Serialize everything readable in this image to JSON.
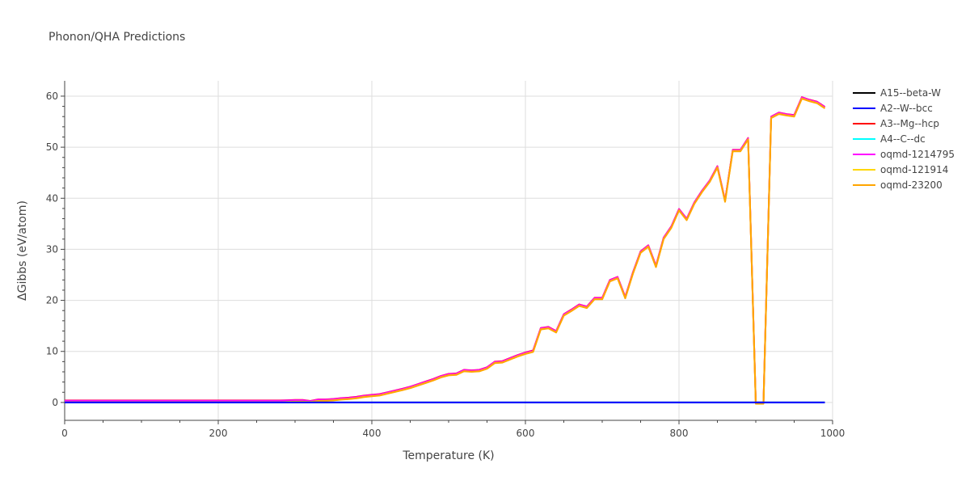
{
  "chart_data": {
    "type": "line",
    "title": "Phonon/QHA Predictions",
    "xlabel": "Temperature (K)",
    "ylabel": "ΔGibbs (eV/atom)",
    "xlim": [
      0,
      1000
    ],
    "ylim": [
      -3.5,
      63
    ],
    "xticks": [
      0,
      200,
      400,
      600,
      800,
      1000
    ],
    "yticks": [
      0,
      10,
      20,
      30,
      40,
      50,
      60
    ],
    "x": [
      0,
      10,
      20,
      30,
      40,
      50,
      60,
      70,
      80,
      90,
      100,
      110,
      120,
      130,
      140,
      150,
      160,
      170,
      180,
      190,
      200,
      210,
      220,
      230,
      240,
      250,
      260,
      270,
      280,
      290,
      300,
      310,
      320,
      330,
      340,
      350,
      360,
      370,
      380,
      390,
      400,
      410,
      420,
      430,
      440,
      450,
      460,
      470,
      480,
      490,
      500,
      510,
      520,
      530,
      540,
      550,
      560,
      570,
      580,
      590,
      600,
      610,
      620,
      630,
      640,
      650,
      660,
      670,
      680,
      690,
      700,
      710,
      720,
      730,
      740,
      750,
      760,
      770,
      780,
      790,
      800,
      810,
      820,
      830,
      840,
      850,
      860,
      870,
      880,
      890,
      900,
      910,
      920,
      930,
      940,
      950,
      960,
      970,
      980,
      990
    ],
    "series": [
      {
        "name": "A15--beta-W",
        "color": "#000000",
        "values": [
          0,
          0,
          0,
          0,
          0,
          0,
          0,
          0,
          0,
          0,
          0,
          0,
          0,
          0,
          0,
          0,
          0,
          0,
          0,
          0,
          0,
          0,
          0,
          0,
          0,
          0,
          0,
          0,
          0,
          0,
          0,
          0,
          0,
          0,
          0,
          0,
          0,
          0,
          0,
          0,
          0,
          0,
          0,
          0,
          0,
          0,
          0,
          0,
          0,
          0,
          0,
          0,
          0,
          0,
          0,
          0,
          0,
          0,
          0,
          0,
          0,
          0,
          0,
          0,
          0,
          0,
          0,
          0,
          0,
          0,
          0,
          0,
          0,
          0,
          0,
          0,
          0,
          0,
          0,
          0,
          0,
          0,
          0,
          0,
          0,
          0,
          0,
          0,
          0,
          0,
          0,
          0,
          0,
          0,
          0,
          0,
          0,
          0,
          0,
          0
        ]
      },
      {
        "name": "A2--W--bcc",
        "color": "#0000ff",
        "values": [
          0,
          0,
          0,
          0,
          0,
          0,
          0,
          0,
          0,
          0,
          0,
          0,
          0,
          0,
          0,
          0,
          0,
          0,
          0,
          0,
          0,
          0,
          0,
          0,
          0,
          0,
          0,
          0,
          0,
          0,
          0,
          0,
          0,
          0,
          0,
          0,
          0,
          0,
          0,
          0,
          0,
          0,
          0,
          0,
          0,
          0,
          0,
          0,
          0,
          0,
          0,
          0,
          0,
          0,
          0,
          0,
          0,
          0,
          0,
          0,
          0,
          0,
          0,
          0,
          0,
          0,
          0,
          0,
          0,
          0,
          0,
          0,
          0,
          0,
          0,
          0,
          0,
          0,
          0,
          0,
          0,
          0,
          0,
          0,
          0,
          0,
          0,
          0,
          0,
          0,
          0,
          0,
          0,
          0,
          0,
          0,
          0,
          0,
          0,
          0
        ]
      },
      {
        "name": "A3--Mg--hcp",
        "color": "#ff0000",
        "values": [
          0.4,
          0.4,
          0.4,
          0.4,
          0.4,
          0.4,
          0.4,
          0.4,
          0.4,
          0.4,
          0.4,
          0.4,
          0.4,
          0.4,
          0.4,
          0.4,
          0.4,
          0.4,
          0.4,
          0.4,
          0.4,
          0.4,
          0.4,
          0.4,
          0.4,
          0.4,
          0.4,
          0.4,
          0.4,
          0.45,
          0.5,
          0.5,
          0.3,
          0.6,
          0.6,
          0.7,
          0.85,
          0.95,
          1.1,
          1.35,
          1.5,
          1.65,
          2.0,
          2.35,
          2.7,
          3.1,
          3.6,
          4.1,
          4.6,
          5.2,
          5.6,
          5.7,
          6.4,
          6.3,
          6.4,
          6.9,
          8.0,
          8.1,
          8.7,
          9.3,
          9.8,
          10.2,
          14.6,
          14.8,
          14.0,
          17.3,
          18.2,
          19.2,
          18.8,
          20.5,
          20.5,
          24.0,
          24.6,
          20.7,
          25.5,
          29.6,
          30.8,
          26.8,
          32.3,
          34.5,
          37.9,
          36.0,
          39.2,
          41.5,
          43.5,
          46.3,
          39.6,
          49.5,
          49.5,
          51.8,
          0,
          0,
          56.0,
          56.8,
          56.5,
          56.3,
          59.8,
          59.3,
          58.9,
          57.9
        ]
      },
      {
        "name": "A4--C--dc",
        "color": "#00ffff",
        "values": [
          0,
          0,
          0,
          0,
          0,
          0,
          0,
          0,
          0,
          0,
          0,
          0,
          0,
          0,
          0,
          0,
          0,
          0,
          0,
          0,
          0,
          0,
          0,
          0,
          0,
          0,
          0,
          0,
          0,
          0,
          0,
          0,
          0,
          0,
          0,
          0,
          0,
          0,
          0,
          0,
          0,
          0,
          0,
          0,
          0,
          0,
          0,
          0,
          0,
          0,
          0,
          0,
          0,
          0,
          0,
          0,
          0,
          0,
          0,
          0,
          0,
          0,
          0,
          0,
          0,
          0,
          0,
          0,
          0,
          0,
          0,
          0,
          0,
          0,
          0,
          0,
          0,
          0,
          0,
          0,
          0,
          0,
          0,
          0,
          0,
          0,
          0,
          0,
          0,
          0,
          0,
          0,
          0,
          0,
          0,
          0,
          0,
          0,
          0,
          0
        ]
      },
      {
        "name": "oqmd-1214795",
        "color": "#ff00ff",
        "values": [
          0.35,
          0.35,
          0.35,
          0.35,
          0.35,
          0.35,
          0.35,
          0.35,
          0.35,
          0.35,
          0.35,
          0.35,
          0.35,
          0.35,
          0.35,
          0.35,
          0.35,
          0.35,
          0.35,
          0.35,
          0.35,
          0.35,
          0.35,
          0.35,
          0.35,
          0.35,
          0.35,
          0.35,
          0.35,
          0.4,
          0.45,
          0.45,
          0.25,
          0.55,
          0.55,
          0.65,
          0.8,
          0.9,
          1.05,
          1.3,
          1.45,
          1.6,
          1.95,
          2.3,
          2.65,
          3.05,
          3.55,
          4.05,
          4.55,
          5.15,
          5.55,
          5.65,
          6.35,
          6.25,
          6.35,
          6.85,
          7.95,
          8.05,
          8.65,
          9.25,
          9.75,
          10.15,
          14.55,
          14.75,
          13.95,
          17.25,
          18.15,
          19.15,
          18.75,
          20.45,
          20.45,
          23.95,
          24.55,
          20.65,
          25.45,
          29.55,
          30.75,
          26.75,
          32.25,
          34.45,
          37.85,
          35.95,
          39.15,
          41.45,
          43.45,
          46.25,
          39.55,
          49.45,
          49.45,
          51.75,
          0,
          0,
          55.95,
          56.75,
          56.45,
          56.25,
          59.75,
          59.25,
          58.85,
          57.85
        ]
      },
      {
        "name": "oqmd-121914",
        "color": "#ffd700",
        "values": [
          0.05,
          0.05,
          0.05,
          0.05,
          0.05,
          0.05,
          0.05,
          0.05,
          0.05,
          0.05,
          0.05,
          0.05,
          0.05,
          0.05,
          0.05,
          0.05,
          0.05,
          0.05,
          0.05,
          0.05,
          0.05,
          0.05,
          0.05,
          0.05,
          0.05,
          0.05,
          0.05,
          0.05,
          0.05,
          0.1,
          0.15,
          0.15,
          0.1,
          0.3,
          0.35,
          0.45,
          0.6,
          0.7,
          0.85,
          1.1,
          1.25,
          1.4,
          1.75,
          2.1,
          2.45,
          2.85,
          3.35,
          3.85,
          4.35,
          4.95,
          5.35,
          5.45,
          6.15,
          6.05,
          6.15,
          6.65,
          7.75,
          7.85,
          8.45,
          9.05,
          9.55,
          9.95,
          14.35,
          14.55,
          13.75,
          17.05,
          17.95,
          18.95,
          18.55,
          20.25,
          20.25,
          23.75,
          24.35,
          20.45,
          25.25,
          29.35,
          30.55,
          26.55,
          32.05,
          34.25,
          37.65,
          35.75,
          38.95,
          41.25,
          43.25,
          46.05,
          39.35,
          49.25,
          49.25,
          51.55,
          -0.2,
          -0.2,
          55.75,
          56.55,
          56.25,
          56.05,
          59.55,
          59.05,
          58.65,
          57.65
        ]
      },
      {
        "name": "oqmd-23200",
        "color": "#ffa500",
        "values": [
          0.0,
          0.0,
          0.0,
          0.0,
          0.0,
          0.0,
          0.0,
          0.0,
          0.0,
          0.0,
          0.0,
          0.0,
          0.0,
          0.0,
          0.0,
          0.0,
          0.0,
          0.0,
          0.0,
          0.0,
          0.0,
          0.0,
          0.0,
          0.0,
          0.0,
          0.0,
          0.0,
          0.0,
          0.0,
          0.05,
          0.1,
          0.1,
          0.05,
          0.25,
          0.3,
          0.4,
          0.55,
          0.65,
          0.8,
          1.05,
          1.2,
          1.35,
          1.7,
          2.05,
          2.4,
          2.8,
          3.3,
          3.8,
          4.3,
          4.9,
          5.3,
          5.4,
          6.1,
          6.0,
          6.1,
          6.6,
          7.7,
          7.8,
          8.4,
          9.0,
          9.5,
          9.9,
          14.3,
          14.5,
          13.7,
          17.0,
          17.9,
          18.9,
          18.5,
          20.2,
          20.2,
          23.7,
          24.3,
          20.4,
          25.2,
          29.3,
          30.5,
          26.5,
          32.0,
          34.2,
          37.6,
          35.7,
          38.9,
          41.2,
          43.2,
          46.0,
          39.3,
          49.2,
          49.2,
          51.5,
          -0.25,
          -0.25,
          55.7,
          56.5,
          56.2,
          56.0,
          59.5,
          59.0,
          58.6,
          57.6
        ]
      }
    ],
    "legend_position": "right"
  }
}
